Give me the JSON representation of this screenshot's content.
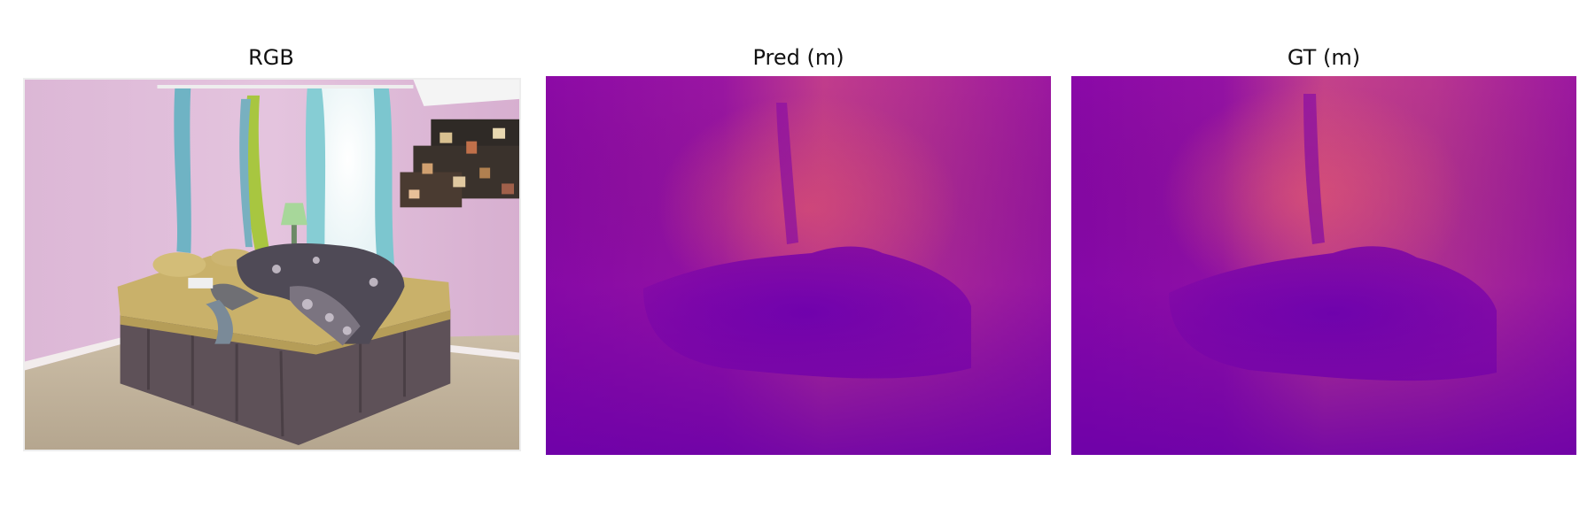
{
  "panels": {
    "rgb": {
      "title": "RGB"
    },
    "pred": {
      "title": "Pred (m)"
    },
    "gt": {
      "title": "GT (m)"
    }
  },
  "colormap": {
    "name": "plasma",
    "near": "#6e00b0",
    "mid": "#a01ba0",
    "far": "#e0507a"
  },
  "scene": {
    "wall": "#d9b6d4",
    "floor": "#c2b39c",
    "bedspread": "#c9b26a",
    "bedskirt": "#5d5057",
    "curtain_blue": "#7fc7cf",
    "curtain_green": "#a6c441",
    "window_light": "#f6fbff",
    "blanket": "#4c4752"
  }
}
